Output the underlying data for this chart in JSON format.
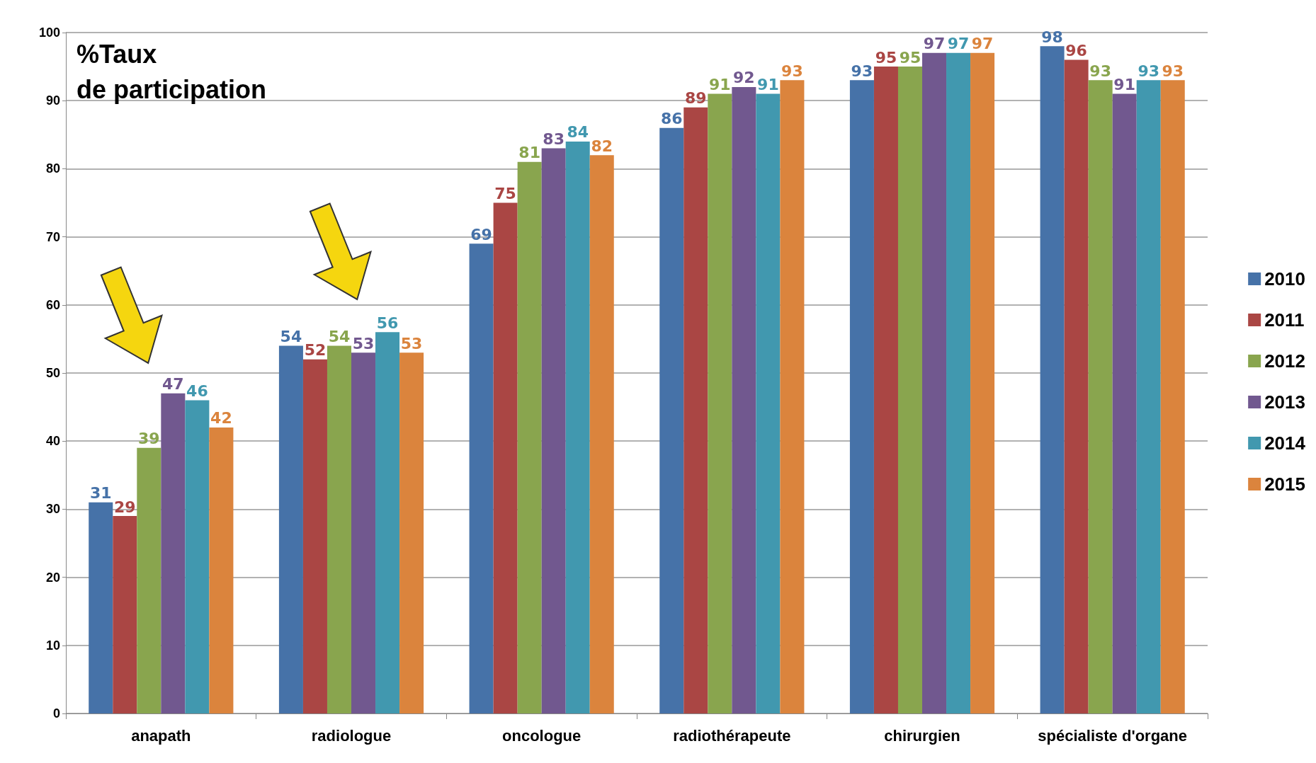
{
  "chart_data": {
    "type": "bar",
    "title": "%Taux\nde participation",
    "categories": [
      "anapath",
      "radiologue",
      "oncologue",
      "radiothérapeute",
      "chirurgien",
      "spécialiste d'organe"
    ],
    "series": [
      {
        "name": "2010",
        "color": "#4672a8",
        "values": [
          31,
          54,
          69,
          86,
          93,
          98
        ]
      },
      {
        "name": "2011",
        "color": "#aa4644",
        "values": [
          29,
          52,
          75,
          89,
          95,
          96
        ]
      },
      {
        "name": "2012",
        "color": "#89a54e",
        "values": [
          39,
          54,
          81,
          91,
          95,
          93
        ]
      },
      {
        "name": "2013",
        "color": "#71588f",
        "values": [
          47,
          53,
          83,
          92,
          97,
          91
        ]
      },
      {
        "name": "2014",
        "color": "#4198af",
        "values": [
          46,
          56,
          84,
          91,
          97,
          93
        ]
      },
      {
        "name": "2015",
        "color": "#db843d",
        "values": [
          42,
          53,
          82,
          93,
          97,
          93
        ]
      }
    ],
    "ylim": [
      0,
      100
    ],
    "yticks": [
      0,
      10,
      20,
      30,
      40,
      50,
      60,
      70,
      80,
      90,
      100
    ],
    "grid": "y",
    "legend": "right",
    "data_labels": true
  }
}
